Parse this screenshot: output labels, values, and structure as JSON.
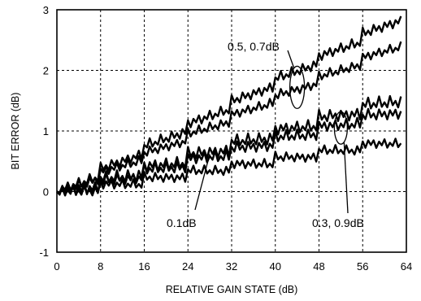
{
  "chart_data": {
    "type": "line",
    "title": "",
    "xlabel": "RELATIVE GAIN STATE (dB)",
    "ylabel": "BIT ERROR (dB)",
    "xlim": [
      0,
      64
    ],
    "ylim": [
      -1,
      3
    ],
    "xticks": [
      0,
      8,
      16,
      24,
      32,
      40,
      48,
      56,
      64
    ],
    "yticks": [
      -1,
      0,
      1,
      2,
      3
    ],
    "grid": true,
    "x": [
      0,
      63
    ],
    "series": [
      {
        "values": [
          0,
          2.92
        ]
      },
      {
        "values": [
          0,
          2.48
        ]
      },
      {
        "values": [
          0,
          1.6
        ]
      },
      {
        "values": [
          0,
          1.4
        ]
      },
      {
        "values": [
          0,
          0.88
        ]
      }
    ],
    "annotations": [
      {
        "text": "0.5, 0.7dB",
        "target_x": 44,
        "target_y": 1.72
      },
      {
        "text": "0.1dB",
        "target_x": 28,
        "target_y": 0.62
      },
      {
        "text": "0.3, 0.9dB",
        "target_x": 52,
        "target_y": 1.05
      }
    ]
  }
}
